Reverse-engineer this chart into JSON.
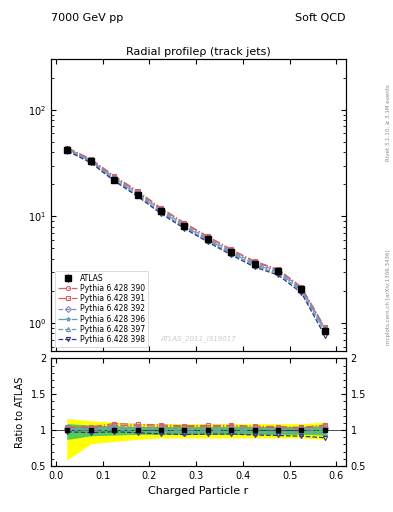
{
  "title": "Radial profileρ (track jets)",
  "top_left_label": "7000 GeV pp",
  "top_right_label": "Soft QCD",
  "watermark": "ATLAS_2011_I919017",
  "right_label_top": "Rivet 3.1.10, ≥ 3.1M events",
  "right_label_bottom": "mcplots.cern.ch [arXiv:1306.3436]",
  "xlabel": "Charged Particle r",
  "ylabel_bottom": "Ratio to ATLAS",
  "x_data": [
    0.025,
    0.075,
    0.125,
    0.175,
    0.225,
    0.275,
    0.325,
    0.375,
    0.425,
    0.475,
    0.525,
    0.575
  ],
  "atlas_y": [
    42,
    33,
    22,
    16,
    11.2,
    8.2,
    6.1,
    4.6,
    3.6,
    3.05,
    2.1,
    0.85
  ],
  "atlas_yerr_lo": [
    3.5,
    2.5,
    1.5,
    1.0,
    0.7,
    0.5,
    0.4,
    0.3,
    0.22,
    0.18,
    0.13,
    0.06
  ],
  "atlas_yerr_hi": [
    3.5,
    2.5,
    1.5,
    1.0,
    0.7,
    0.5,
    0.4,
    0.3,
    0.22,
    0.18,
    0.13,
    0.06
  ],
  "band_yellow_lo": [
    0.6,
    0.82,
    0.85,
    0.88,
    0.9,
    0.9,
    0.9,
    0.9,
    0.9,
    0.9,
    0.9,
    0.88
  ],
  "band_yellow_hi": [
    1.15,
    1.12,
    1.1,
    1.08,
    1.08,
    1.08,
    1.08,
    1.08,
    1.08,
    1.08,
    1.08,
    1.1
  ],
  "band_green_lo": [
    0.88,
    0.93,
    0.94,
    0.95,
    0.95,
    0.95,
    0.95,
    0.95,
    0.95,
    0.95,
    0.95,
    0.94
  ],
  "band_green_hi": [
    1.08,
    1.06,
    1.05,
    1.04,
    1.04,
    1.04,
    1.04,
    1.04,
    1.04,
    1.04,
    1.04,
    1.05
  ],
  "pythia_390_y": [
    43.5,
    34.0,
    23.5,
    17.0,
    11.8,
    8.6,
    6.4,
    4.85,
    3.75,
    3.15,
    2.15,
    0.9
  ],
  "pythia_391_y": [
    44.0,
    34.5,
    24.0,
    17.3,
    12.0,
    8.7,
    6.5,
    4.9,
    3.8,
    3.2,
    2.18,
    0.91
  ],
  "pythia_392_y": [
    43.0,
    33.5,
    23.0,
    16.6,
    11.5,
    8.3,
    6.2,
    4.7,
    3.65,
    3.08,
    2.12,
    0.88
  ],
  "pythia_396_y": [
    42.5,
    33.0,
    22.5,
    16.2,
    11.2,
    8.1,
    6.05,
    4.6,
    3.55,
    3.0,
    2.06,
    0.85
  ],
  "pythia_397_y": [
    41.8,
    32.5,
    22.0,
    15.8,
    10.9,
    7.9,
    5.9,
    4.48,
    3.45,
    2.92,
    2.0,
    0.82
  ],
  "pythia_398_y": [
    41.0,
    31.8,
    21.5,
    15.4,
    10.6,
    7.7,
    5.75,
    4.35,
    3.35,
    2.82,
    1.92,
    0.76
  ],
  "color_390": "#cc6666",
  "color_391": "#cc6666",
  "color_392": "#8888bb",
  "color_396": "#6699bb",
  "color_397": "#6699bb",
  "color_398": "#333388",
  "marker_390": "o",
  "marker_391": "s",
  "marker_392": "D",
  "marker_396": "*",
  "marker_397": "^",
  "marker_398": "v",
  "ls_390": "-.",
  "ls_391": "-.",
  "ls_392": "--",
  "ls_396": "-.",
  "ls_397": "--",
  "ls_398": "--"
}
